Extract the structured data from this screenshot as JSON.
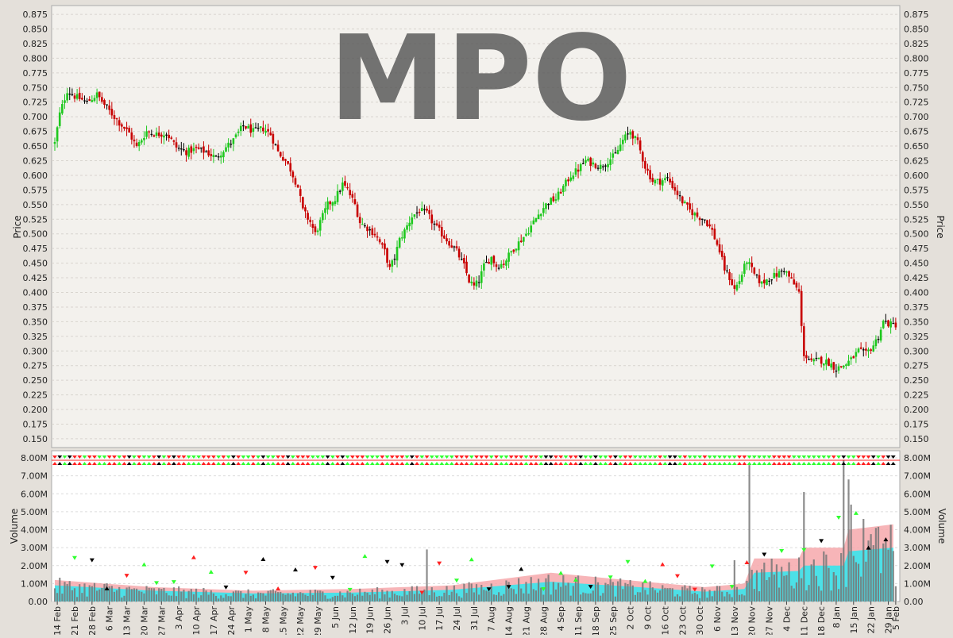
{
  "chart_data": [
    {
      "type": "candlestick",
      "title": "MPO",
      "ylabel": "Price",
      "ylim": [
        0.135,
        0.89
      ],
      "yticks": [
        "0.150",
        "0.175",
        "0.200",
        "0.225",
        "0.250",
        "0.275",
        "0.300",
        "0.325",
        "0.350",
        "0.375",
        "0.400",
        "0.425",
        "0.450",
        "0.475",
        "0.500",
        "0.525",
        "0.550",
        "0.575",
        "0.600",
        "0.625",
        "0.650",
        "0.675",
        "0.700",
        "0.725",
        "0.750",
        "0.775",
        "0.800",
        "0.825",
        "0.850",
        "0.875"
      ],
      "grid": true,
      "colors": {
        "up": "#1ec81e",
        "down": "#c80000",
        "flat": "#000000"
      },
      "close_path": [
        [
          0,
          0.655
        ],
        [
          2,
          0.705
        ],
        [
          5,
          0.745
        ],
        [
          8,
          0.735
        ],
        [
          13,
          0.725
        ],
        [
          17,
          0.738
        ],
        [
          21,
          0.715
        ],
        [
          26,
          0.69
        ],
        [
          30,
          0.672
        ],
        [
          33,
          0.648
        ],
        [
          37,
          0.675
        ],
        [
          41,
          0.67
        ],
        [
          45,
          0.672
        ],
        [
          49,
          0.648
        ],
        [
          53,
          0.64
        ],
        [
          57,
          0.645
        ],
        [
          61,
          0.64
        ],
        [
          65,
          0.63
        ],
        [
          69,
          0.648
        ],
        [
          72,
          0.66
        ],
        [
          76,
          0.685
        ],
        [
          80,
          0.675
        ],
        [
          84,
          0.68
        ],
        [
          87,
          0.67
        ],
        [
          90,
          0.64
        ],
        [
          93,
          0.625
        ],
        [
          95,
          0.61
        ],
        [
          98,
          0.58
        ],
        [
          100,
          0.54
        ],
        [
          103,
          0.52
        ],
        [
          105,
          0.5
        ],
        [
          107,
          0.52
        ],
        [
          110,
          0.55
        ],
        [
          113,
          0.56
        ],
        [
          116,
          0.585
        ],
        [
          118,
          0.575
        ],
        [
          121,
          0.55
        ],
        [
          123,
          0.52
        ],
        [
          126,
          0.51
        ],
        [
          129,
          0.5
        ],
        [
          131,
          0.485
        ],
        [
          133,
          0.47
        ],
        [
          135,
          0.44
        ],
        [
          137,
          0.46
        ],
        [
          139,
          0.49
        ],
        [
          141,
          0.505
        ],
        [
          144,
          0.53
        ],
        [
          147,
          0.54
        ],
        [
          150,
          0.535
        ],
        [
          153,
          0.515
        ],
        [
          156,
          0.5
        ],
        [
          159,
          0.485
        ],
        [
          162,
          0.47
        ],
        [
          165,
          0.445
        ],
        [
          167,
          0.42
        ],
        [
          169,
          0.41
        ],
        [
          171,
          0.42
        ],
        [
          173,
          0.445
        ],
        [
          176,
          0.46
        ],
        [
          178,
          0.445
        ],
        [
          181,
          0.45
        ],
        [
          184,
          0.47
        ],
        [
          187,
          0.485
        ],
        [
          190,
          0.5
        ],
        [
          193,
          0.52
        ],
        [
          196,
          0.54
        ],
        [
          199,
          0.555
        ],
        [
          202,
          0.56
        ],
        [
          205,
          0.58
        ],
        [
          208,
          0.6
        ],
        [
          211,
          0.61
        ],
        [
          214,
          0.625
        ],
        [
          217,
          0.62
        ],
        [
          220,
          0.615
        ],
        [
          223,
          0.625
        ],
        [
          226,
          0.635
        ],
        [
          229,
          0.66
        ],
        [
          232,
          0.675
        ],
        [
          235,
          0.655
        ],
        [
          238,
          0.615
        ],
        [
          241,
          0.59
        ],
        [
          244,
          0.59
        ],
        [
          247,
          0.595
        ],
        [
          250,
          0.575
        ],
        [
          253,
          0.555
        ],
        [
          256,
          0.54
        ],
        [
          259,
          0.53
        ],
        [
          262,
          0.525
        ],
        [
          265,
          0.505
        ],
        [
          268,
          0.47
        ],
        [
          270,
          0.44
        ],
        [
          272,
          0.425
        ],
        [
          274,
          0.405
        ],
        [
          276,
          0.42
        ],
        [
          279,
          0.455
        ],
        [
          282,
          0.43
        ],
        [
          285,
          0.415
        ],
        [
          288,
          0.425
        ],
        [
          291,
          0.43
        ],
        [
          294,
          0.44
        ],
        [
          297,
          0.42
        ],
        [
          300,
          0.4
        ],
        [
          301,
          0.34
        ],
        [
          302,
          0.295
        ],
        [
          305,
          0.28
        ],
        [
          308,
          0.285
        ],
        [
          312,
          0.28
        ],
        [
          315,
          0.27
        ],
        [
          318,
          0.275
        ],
        [
          321,
          0.285
        ],
        [
          324,
          0.3
        ],
        [
          327,
          0.295
        ],
        [
          330,
          0.31
        ],
        [
          332,
          0.325
        ],
        [
          334,
          0.35
        ],
        [
          337,
          0.345
        ]
      ],
      "range_high": 0.77,
      "range_low": 0.262
    },
    {
      "type": "bar",
      "ylabel": "Volume",
      "ylim": [
        0,
        8400000
      ],
      "yticks": [
        "0.00",
        "1.00M",
        "2.00M",
        "3.00M",
        "4.00M",
        "5.00M",
        "6.00M",
        "7.00M",
        "8.00M"
      ],
      "signal_row": true,
      "x": [
        "14 Feb",
        "21 Feb",
        "28 Feb",
        "6 Mar",
        "13 Mar",
        "20 Mar",
        "27 Mar",
        "3 Apr",
        "10 Apr",
        "17 Apr",
        "24 Apr",
        "1 May",
        "8 May",
        "15 May",
        "22 May",
        "29 May",
        "5 Jun",
        "12 Jun",
        "19 Jun",
        "26 Jun",
        "3 Jul",
        "10 Jul",
        "17 Jul",
        "24 Jul",
        "31 Jul",
        "7 Aug",
        "14 Aug",
        "21 Aug",
        "28 Aug",
        "4 Sep",
        "11 Sep",
        "18 Sep",
        "25 Sep",
        "2 Oct",
        "9 Oct",
        "16 Oct",
        "23 Oct",
        "30 Oct",
        "6 Nov",
        "13 Nov",
        "20 Nov",
        "27 Nov",
        "4 Dec",
        "11 Dec",
        "18 Dec",
        "8 Jan",
        "15 Jan",
        "22 Jan",
        "29 Jan",
        "5 Feb"
      ],
      "band_outer_path": [
        [
          0,
          1.2
        ],
        [
          40,
          0.8
        ],
        [
          80,
          0.6
        ],
        [
          120,
          0.7
        ],
        [
          160,
          0.9
        ],
        [
          200,
          1.6
        ],
        [
          230,
          1.2
        ],
        [
          262,
          0.8
        ],
        [
          278,
          1.0
        ],
        [
          282,
          2.4
        ],
        [
          300,
          2.4
        ],
        [
          302,
          3.0
        ],
        [
          318,
          3.0
        ],
        [
          320,
          4.0
        ],
        [
          338,
          4.3
        ]
      ],
      "band_inner_path": [
        [
          0,
          0.9
        ],
        [
          40,
          0.6
        ],
        [
          80,
          0.45
        ],
        [
          120,
          0.5
        ],
        [
          160,
          0.65
        ],
        [
          200,
          1.1
        ],
        [
          230,
          0.85
        ],
        [
          262,
          0.55
        ],
        [
          278,
          0.7
        ],
        [
          282,
          1.6
        ],
        [
          300,
          1.7
        ],
        [
          302,
          2.0
        ],
        [
          318,
          2.0
        ],
        [
          320,
          2.8
        ],
        [
          338,
          3.0
        ]
      ],
      "volume_spikes": [
        [
          280,
          7.6
        ],
        [
          302,
          6.1
        ],
        [
          318,
          7.9
        ],
        [
          320,
          6.8
        ],
        [
          321,
          5.4
        ],
        [
          326,
          4.6
        ],
        [
          331,
          4.1
        ],
        [
          150,
          2.9
        ],
        [
          274,
          2.3
        ],
        [
          285,
          1.8
        ],
        [
          290,
          1.5
        ]
      ]
    }
  ]
}
